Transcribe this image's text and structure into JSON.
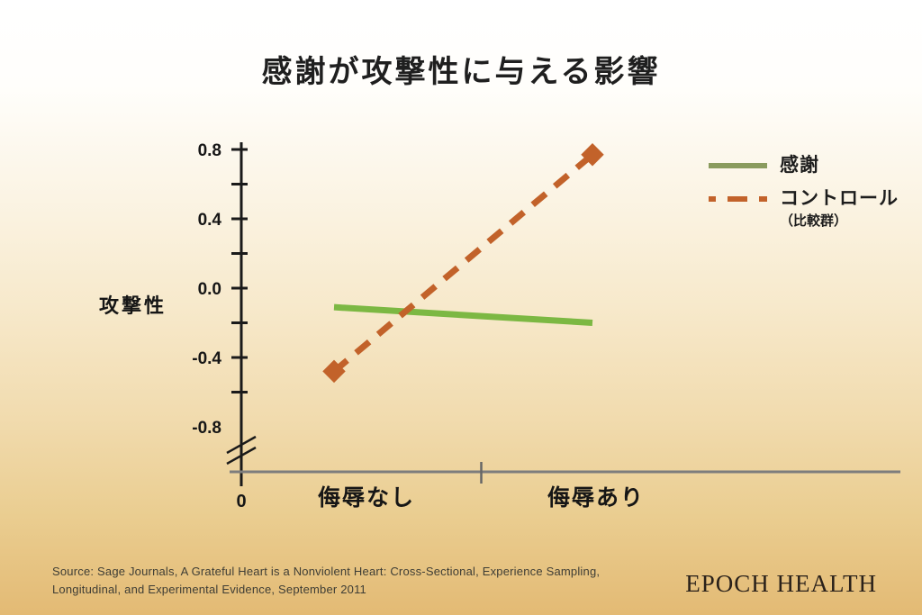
{
  "title": "感謝が攻撃性に与える影響",
  "chart_data": {
    "type": "line",
    "title": "感謝が攻撃性に与える影響",
    "categories": [
      "侮辱なし",
      "侮辱あり"
    ],
    "series": [
      {
        "name": "感謝",
        "values": [
          -0.11,
          -0.2
        ],
        "line_style": "solid",
        "color": "#7cb843",
        "legend_color": "#8a9b5e"
      },
      {
        "name": "コントロール",
        "sub_label": "（比較群）",
        "values": [
          -0.48,
          0.77
        ],
        "line_style": "dashed",
        "marker": "diamond",
        "color": "#c2622a",
        "legend_color": "#c2622a"
      }
    ],
    "ylabel": "攻撃性",
    "xlabel": "",
    "ylim": [
      -0.9,
      0.9
    ],
    "y_tick_step": 0.2,
    "y_labeled_ticks": [
      "0.8",
      "0.4",
      "0.0",
      "-0.4",
      "-0.8"
    ],
    "x_origin_label": "0",
    "y_axis_break": true,
    "grid": false,
    "legend_position": "right"
  },
  "colors": {
    "axis": "#1a1a1a",
    "x_axis": "#7d7d7d",
    "background_top": "#ffffff",
    "background_bottom": "#e3ba74"
  },
  "footer": {
    "source_line1": "Source: Sage Journals, A Grateful Heart is a Nonviolent Heart: Cross-Sectional, Experience Sampling,",
    "source_line2": "Longitudinal, and Experimental Evidence, September 2011",
    "brand": "EPOCH HEALTH"
  }
}
